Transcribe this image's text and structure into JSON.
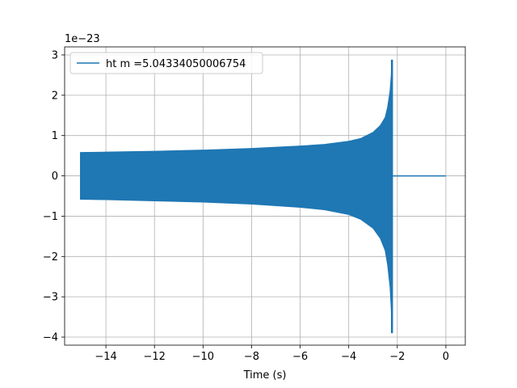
{
  "chart_data": {
    "type": "line",
    "title": "",
    "xlabel": "Time (s)",
    "ylabel": "",
    "xlim": [
      -15.7,
      0.8
    ],
    "ylim": [
      -4.2,
      3.2
    ],
    "x_ticks": [
      -14,
      -12,
      -10,
      -8,
      -6,
      -4,
      -2,
      0
    ],
    "x_tick_labels": [
      "−14",
      "−12",
      "−10",
      "−8",
      "−6",
      "−4",
      "−2",
      "0"
    ],
    "y_ticks": [
      -4,
      -3,
      -2,
      -1,
      0,
      1,
      2,
      3
    ],
    "y_tick_labels": [
      "−4",
      "−3",
      "−2",
      "−1",
      "0",
      "1",
      "2",
      "3"
    ],
    "y_offset_text": "1e−23",
    "grid": true,
    "legend_position": "upper-left",
    "series": [
      {
        "name": "ht m =5.04334050006754",
        "color": "#1f77b4",
        "x_start": -15.05,
        "merger_time": -2.22,
        "end_time": 0.0,
        "envelope": {
          "x": [
            -15.05,
            -14.0,
            -12.0,
            -10.0,
            -8.0,
            -6.0,
            -5.0,
            -4.0,
            -3.5,
            -3.0,
            -2.7,
            -2.5,
            -2.4,
            -2.3,
            -2.25,
            -2.22
          ],
          "upper": [
            0.58,
            0.59,
            0.61,
            0.64,
            0.68,
            0.74,
            0.78,
            0.86,
            0.93,
            1.08,
            1.25,
            1.45,
            1.7,
            2.1,
            2.5,
            2.88
          ],
          "lower": [
            -0.58,
            -0.59,
            -0.62,
            -0.65,
            -0.7,
            -0.78,
            -0.84,
            -0.96,
            -1.08,
            -1.3,
            -1.55,
            -1.85,
            -2.2,
            -2.75,
            -3.3,
            -3.9
          ]
        }
      }
    ]
  }
}
